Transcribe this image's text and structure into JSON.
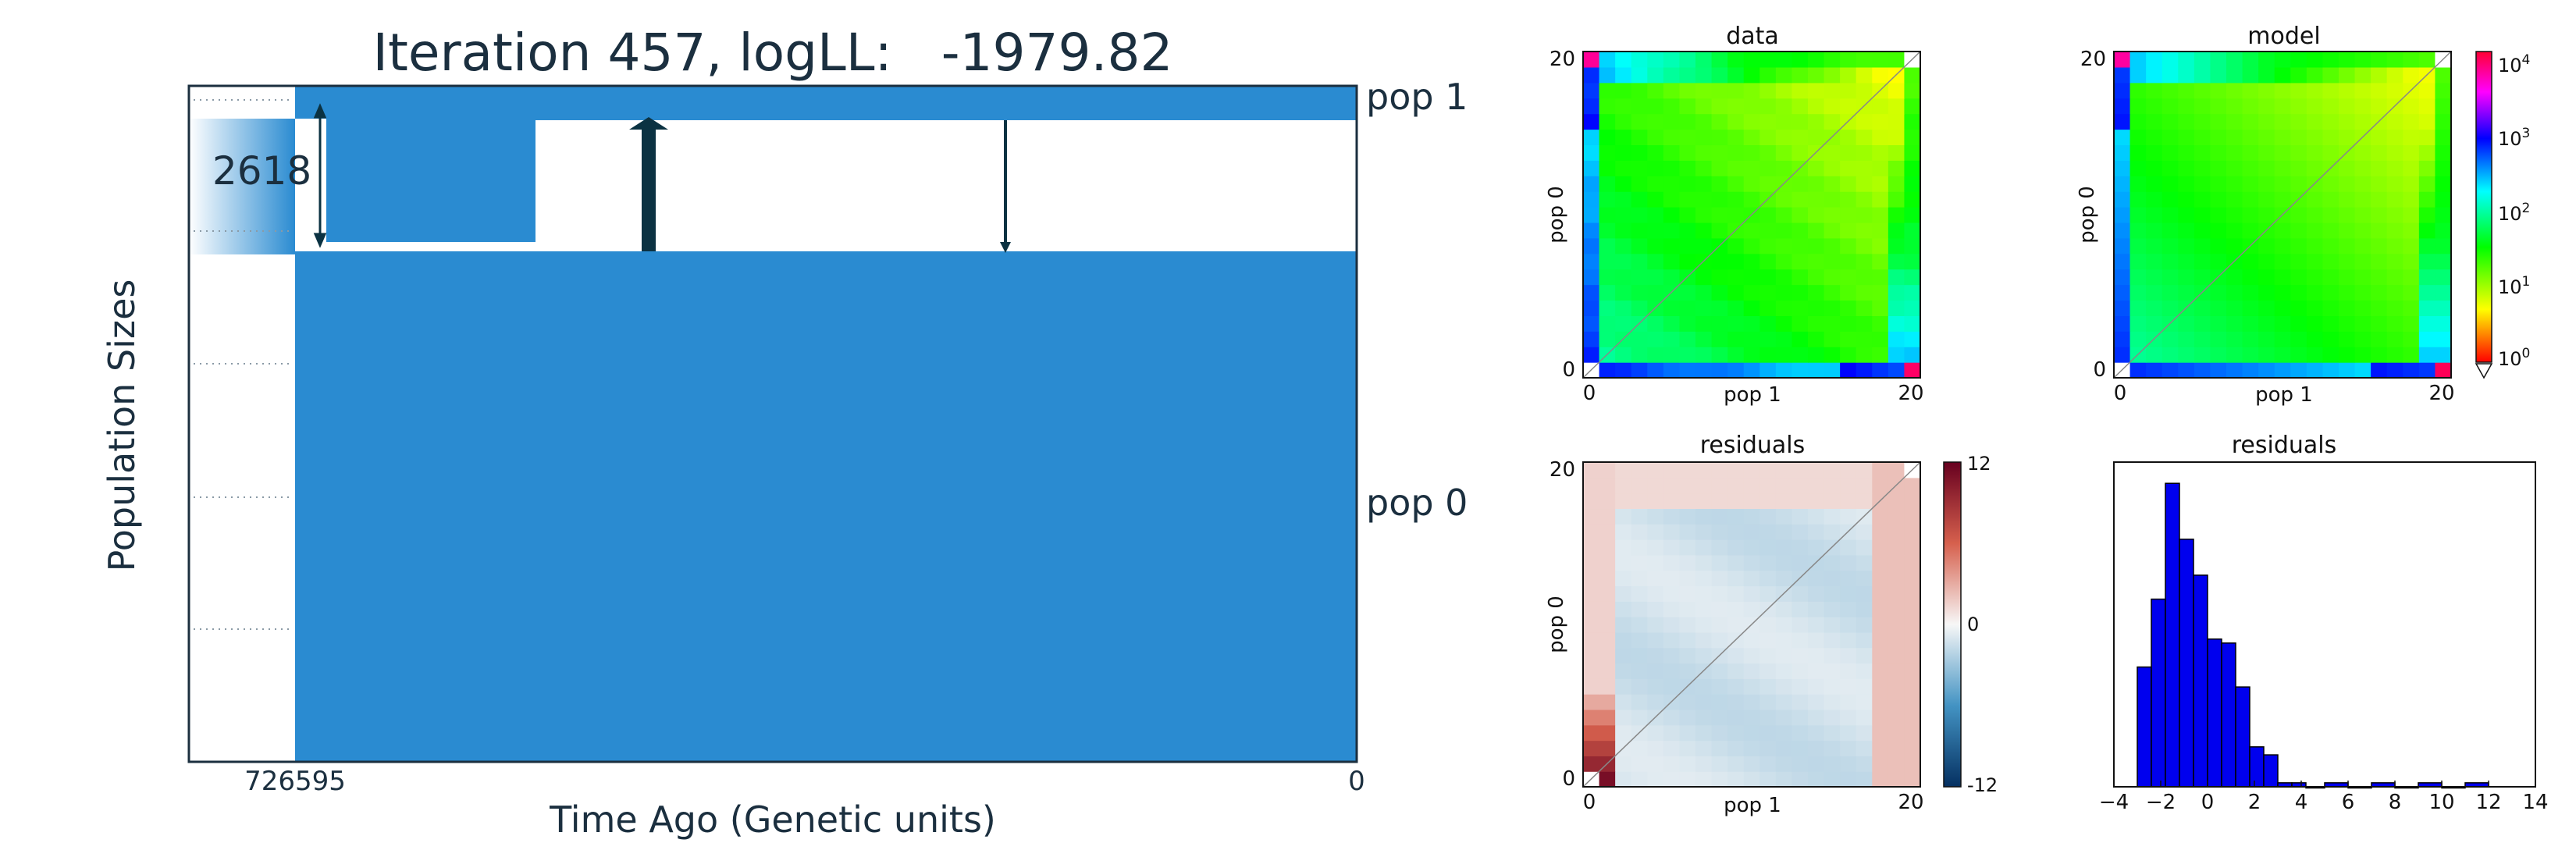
{
  "figure": {
    "title": "Iteration 457, logLL:   -1979.82",
    "colors": {
      "pop_fill": "#2a8bd1",
      "text": "#1b2f3f",
      "arrow": "#0b3242",
      "hist_bar": "#0000ee"
    }
  },
  "chart_data": [
    {
      "type": "demography",
      "ylabel": "Population Sizes",
      "xlabel": "Time Ago (Genetic units)",
      "x_ticks": [
        "726595",
        "0"
      ],
      "size_label": "2618",
      "pop_labels": [
        "pop 1",
        "pop 0"
      ],
      "gridlines": "dotted",
      "arrows": [
        "migration pulse",
        "migration pulse"
      ]
    },
    {
      "type": "heatmap",
      "title": "data",
      "xlabel": "pop 1",
      "ylabel": "pop 0",
      "x_ticks": [
        "0",
        "20"
      ],
      "y_ticks": [
        "0",
        "20"
      ],
      "grid_size": 21
    },
    {
      "type": "heatmap",
      "title": "model",
      "xlabel": "pop 1",
      "ylabel": "pop 0",
      "x_ticks": [
        "0",
        "20"
      ],
      "y_ticks": [
        "0",
        "20"
      ],
      "grid_size": 21,
      "colorbar": {
        "scale": "log",
        "ticks": [
          "10",
          "10",
          "10",
          "10",
          "10"
        ],
        "exponents": [
          "4",
          "3",
          "2",
          "1",
          "0"
        ]
      }
    },
    {
      "type": "heatmap",
      "title": "residuals",
      "xlabel": "pop 1",
      "ylabel": "pop 0",
      "x_ticks": [
        "0",
        "20"
      ],
      "y_ticks": [
        "0",
        "20"
      ],
      "grid_size": 21,
      "colorbar": {
        "ticks": [
          "12",
          "0",
          "-12"
        ],
        "range": [
          -12,
          12
        ]
      }
    },
    {
      "type": "bar",
      "title": "residuals",
      "x_ticks": [
        "−4",
        "−2",
        "0",
        "2",
        "4",
        "6",
        "8",
        "10",
        "12",
        "14"
      ],
      "xlim": [
        -4,
        14
      ],
      "bin_edges": [
        -3.0,
        -2.4,
        -1.8,
        -1.2,
        -0.6,
        0.0,
        0.6,
        1.2,
        1.8,
        2.4,
        3.0,
        3.6,
        4.2,
        5.0,
        6.0,
        7.0,
        8.0,
        9.0,
        10.0,
        11.0,
        12.0
      ],
      "counts": [
        30,
        47,
        76,
        62,
        53,
        37,
        36,
        25,
        10,
        8,
        1,
        1,
        0,
        1,
        0,
        1,
        0,
        1,
        0,
        1
      ]
    }
  ]
}
